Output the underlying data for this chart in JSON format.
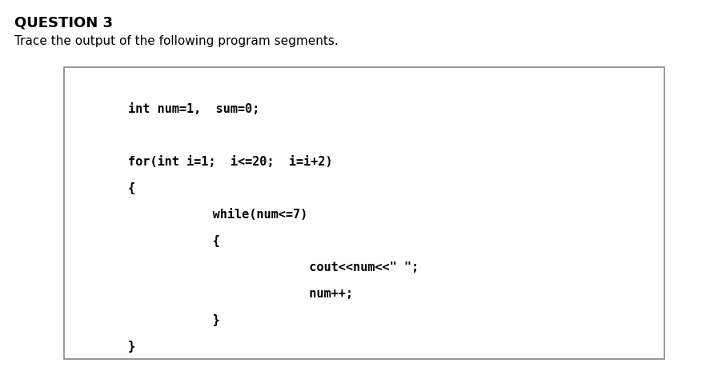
{
  "title": "QUESTION 3",
  "subtitle": "Trace the output of the following program segments.",
  "bg_color": "#ffffff",
  "box_facecolor": "#ffffff",
  "box_edgecolor": "#888888",
  "title_fontsize": 13,
  "subtitle_fontsize": 11,
  "code_fontsize": 11,
  "code_lines": [
    "int num=1,  sum=0;",
    "",
    "for(int i=1;  i<=20;  i=i+2)",
    "{",
    "     while(num<=7)",
    "     {",
    "          cout<<num<<\" \";",
    "          num++;",
    "     }",
    "}"
  ],
  "code_x_indent": [
    0,
    0,
    0,
    0,
    1,
    1,
    2,
    2,
    1,
    0
  ]
}
